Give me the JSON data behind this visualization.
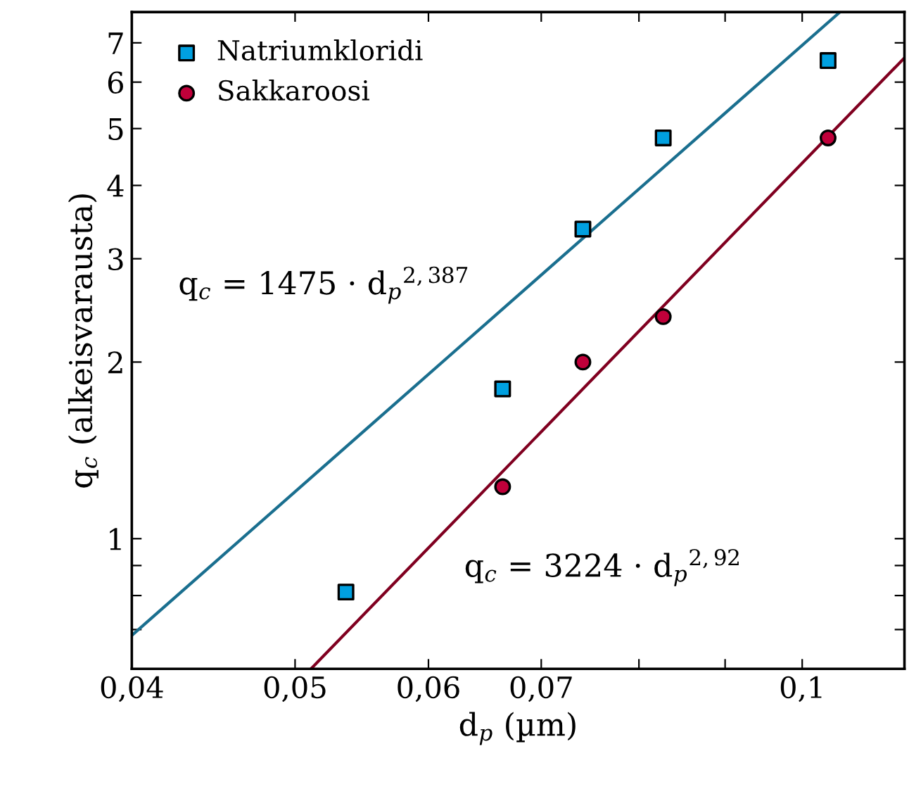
{
  "chart_data": {
    "type": "scatter",
    "xlabel": "d$_{p}$ (µm)",
    "ylabel": "q$_{c}$ (alkeisvarausta)",
    "log": "xy",
    "grid": false,
    "legend": "top left",
    "xlim": [
      0.04,
      0.115
    ],
    "ylim": [
      0.6,
      7.9
    ],
    "xticks": [
      {
        "value": 0.04,
        "label": "0,04"
      },
      {
        "value": 0.05,
        "label": "0,05"
      },
      {
        "value": 0.06,
        "label": "0,06"
      },
      {
        "value": 0.07,
        "label": "0,07"
      },
      {
        "value": 0.08,
        "label": null
      },
      {
        "value": 0.09,
        "label": null
      },
      {
        "value": 0.1,
        "label": "0,1"
      }
    ],
    "yticks": [
      {
        "value": 0.7,
        "label": null
      },
      {
        "value": 0.8,
        "label": null
      },
      {
        "value": 0.9,
        "label": null
      },
      1,
      2,
      3,
      4,
      5,
      6,
      7
    ],
    "series": [
      {
        "name": "Natriumkloridi",
        "marker": "square",
        "color": "#00a0e0",
        "x": [
          0.0536,
          0.0664,
          0.0741,
          0.0827,
          0.1036
        ],
        "values": [
          0.811,
          1.8,
          3.37,
          4.82,
          6.53
        ]
      },
      {
        "name": "Sakkaroosi",
        "marker": "circle",
        "color": "#c0003a",
        "x": [
          0.0664,
          0.0741,
          0.0827,
          0.1036
        ],
        "values": [
          1.226,
          2.0,
          2.39,
          4.82
        ]
      },
      {
        "type": "line",
        "color": "#1a6f8f",
        "x": [
          0.04,
          0.1053
        ],
        "values": [
          0.684,
          7.9
        ]
      },
      {
        "type": "line",
        "color": "#800020",
        "x": [
          0.0511,
          0.115
        ],
        "values": [
          0.6,
          6.6
        ]
      }
    ],
    "annotations": [
      "q$_{c}$ = 1475 · d$_{p}$$^{2,387}$",
      "q$_{c}$ = 3224 · d$_{p}$$^{2,92}$"
    ]
  }
}
